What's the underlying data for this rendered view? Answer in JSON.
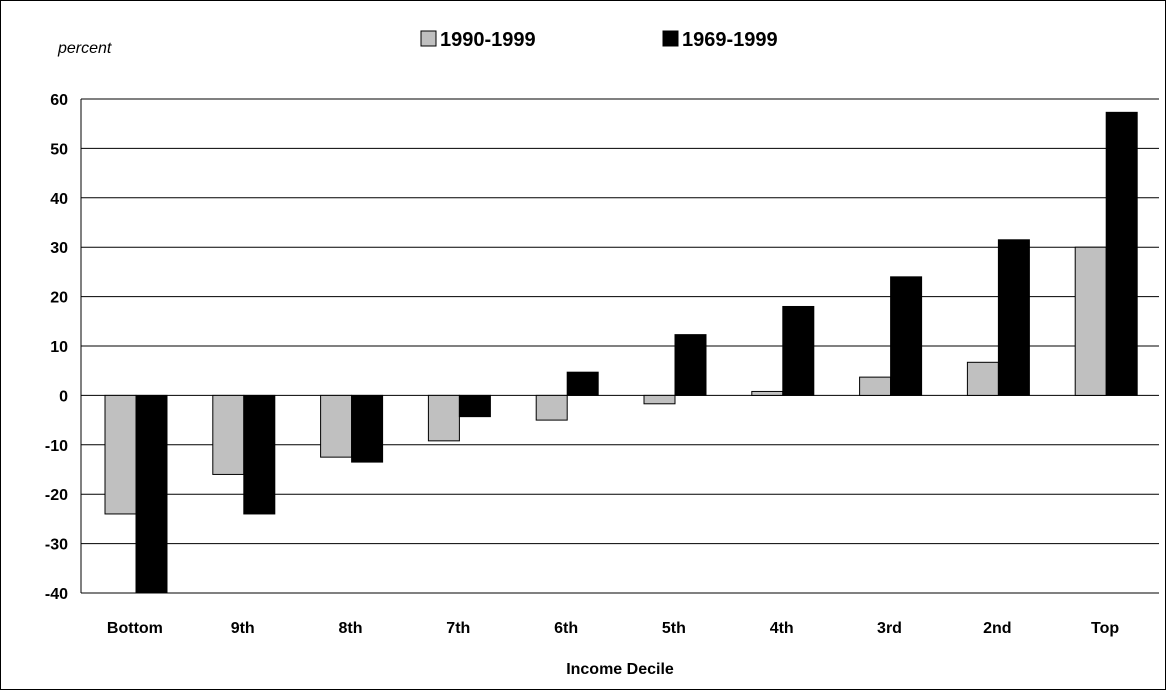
{
  "chart_data": {
    "type": "bar",
    "y_unit_label": "percent",
    "xlabel": "Income Decile",
    "ylabel": "",
    "ylim": [
      -40,
      60
    ],
    "yticks": [
      60,
      50,
      40,
      30,
      20,
      10,
      0,
      -10,
      -20,
      -30,
      -40
    ],
    "grid": true,
    "legend_position": "top-center",
    "categories": [
      "Bottom",
      "9th",
      "8th",
      "7th",
      "6th",
      "5th",
      "4th",
      "3rd",
      "2nd",
      "Top"
    ],
    "series": [
      {
        "name": "1990-1999",
        "color": "#c0c0c0",
        "values": [
          -24,
          -16,
          -12.5,
          -9.2,
          -5,
          -1.7,
          0.8,
          3.7,
          6.7,
          30
        ]
      },
      {
        "name": "1969-1999",
        "color": "#000000",
        "values": [
          -40,
          -24,
          -13.5,
          -4.3,
          4.7,
          12.3,
          18,
          24,
          31.5,
          57.3
        ]
      }
    ]
  }
}
